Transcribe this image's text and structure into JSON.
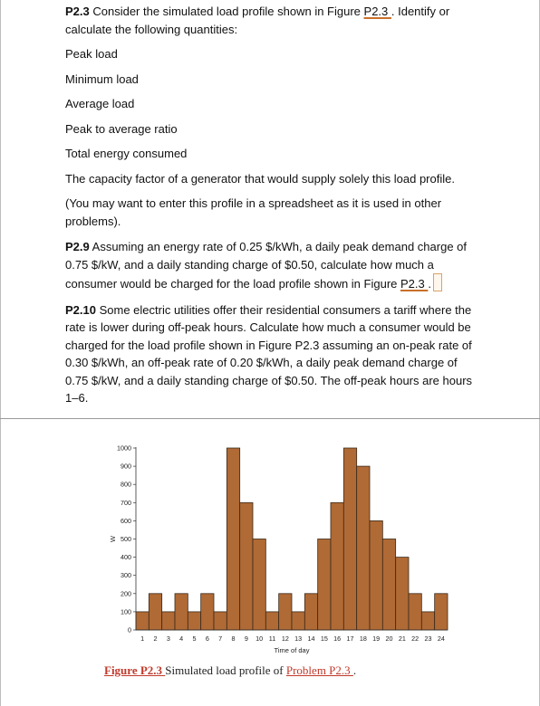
{
  "problem_2_3": {
    "label": "P2.3",
    "intro_before": " Consider the simulated load profile shown in Figure ",
    "figure_ref": "P2.3 ",
    "intro_after": ". Identify or calculate the following quantities:",
    "items": [
      "Peak load",
      "Minimum load",
      "Average load",
      "Peak to average ratio",
      "Total energy consumed"
    ],
    "capacity_factor": "The capacity factor of a generator that would supply solely this load profile.",
    "note": "(You may want to enter this profile in a spreadsheet as it is used in other problems)."
  },
  "problem_2_9": {
    "label": "P2.9",
    "text": " Assuming an energy rate of 0.25 $/kWh, a daily peak demand charge of 0.75 $/kW, and a daily standing charge of $0.50, calculate how much a consumer would be charged for the load profile shown in Figure ",
    "figure_ref": "P2.3 ",
    "end": "."
  },
  "problem_2_10": {
    "label": "P2.10",
    "text": " Some electric utilities offer their residential consumers a tariff where the rate is lower during off-peak hours. Calculate how much a consumer would be charged for the load profile shown in Figure P2.3 assuming an on-peak rate of 0.30 $/kWh, an off-peak rate of 0.20 $/kWh, a daily peak demand charge of 0.75 $/kW, and a daily standing charge of $0.50. The off-peak hours are hours 1–6."
  },
  "chart_data": {
    "type": "bar",
    "categories": [
      "1",
      "2",
      "3",
      "4",
      "5",
      "6",
      "7",
      "8",
      "9",
      "10",
      "11",
      "12",
      "13",
      "14",
      "15",
      "16",
      "17",
      "18",
      "19",
      "20",
      "21",
      "22",
      "23",
      "24"
    ],
    "values": [
      100,
      200,
      100,
      200,
      100,
      200,
      100,
      1000,
      700,
      500,
      100,
      200,
      100,
      200,
      500,
      700,
      1000,
      900,
      600,
      500,
      400,
      200,
      100,
      200
    ],
    "xlabel": "Time of day",
    "ylabel": "W",
    "ylim": [
      0,
      1000
    ],
    "yticks": [
      "0",
      "100",
      "200",
      "300",
      "400",
      "500",
      "600",
      "700",
      "800",
      "900",
      "1000"
    ],
    "grid": false,
    "bar_color": "#b06a35",
    "bar_edge": "#3a2a1a"
  },
  "caption": {
    "figure_label": "Figure P2.3 ",
    "text_before": "Simulated load profile of ",
    "problem_link": "Problem P2.3 ",
    "end": "."
  }
}
